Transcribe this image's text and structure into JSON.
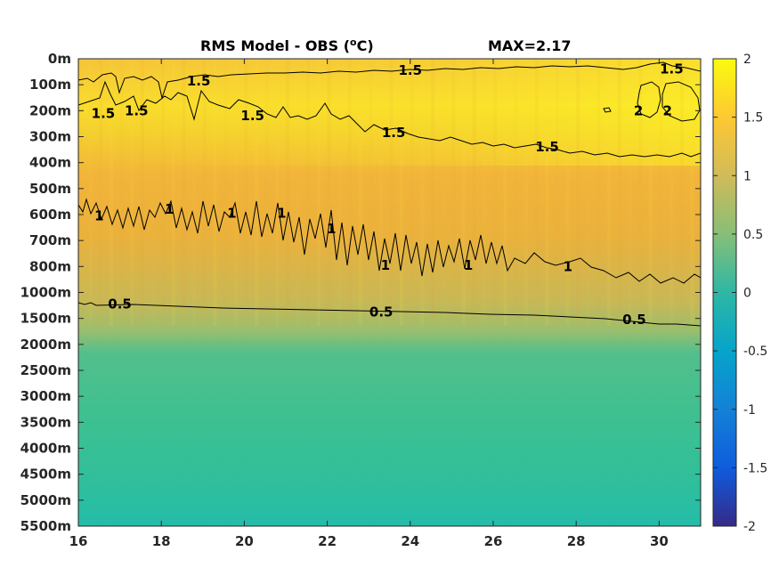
{
  "chart_data": {
    "type": "heatmap",
    "title": "RMS Model - OBS (",
    "title_unit_sup": "o",
    "title_unit_tail": "C)",
    "title_max": "MAX=2.17",
    "x": {
      "ticks": [
        16,
        18,
        20,
        22,
        24,
        26,
        28,
        30
      ],
      "range": [
        16,
        31
      ]
    },
    "y": {
      "ticks": [
        "0m",
        "100m",
        "200m",
        "300m",
        "400m",
        "500m",
        "600m",
        "700m",
        "800m",
        "1000m",
        "1500m",
        "2000m",
        "2500m",
        "3000m",
        "3500m",
        "4000m",
        "4500m",
        "5000m",
        "5500m"
      ],
      "reversed": true
    },
    "colorbar": {
      "range": [
        -2,
        2
      ],
      "ticks": [
        2,
        1.5,
        1,
        0.5,
        0,
        -0.5,
        -1,
        -1.5,
        -2
      ],
      "colormap": "parula",
      "colors": [
        "#352a87",
        "#0f5cdd",
        "#1481d6",
        "#06a4ca",
        "#2eb7a4",
        "#87bf77",
        "#d1bb59",
        "#fec832",
        "#f9fb0e"
      ]
    },
    "rms_profile": {
      "depth_level": [
        0,
        1,
        2,
        3,
        4,
        5,
        6,
        7,
        8,
        9,
        10,
        11,
        12,
        13,
        14,
        15,
        16,
        17,
        18
      ],
      "value_at_x16": [
        1.3,
        1.45,
        1.5,
        1.4,
        1.3,
        1.2,
        1.05,
        0.95,
        0.85,
        0.65,
        0.45,
        0.42,
        0.4,
        0.38,
        0.36,
        0.34,
        0.32,
        0.3,
        0.28
      ],
      "value_at_x31": [
        1.55,
        1.85,
        1.9,
        1.55,
        1.35,
        1.25,
        1.15,
        1.05,
        0.95,
        0.75,
        0.5,
        0.42,
        0.4,
        0.38,
        0.36,
        0.34,
        0.32,
        0.3,
        0.28
      ]
    },
    "contours": [
      {
        "level": "2",
        "labels": [
          {
            "x": 29.5,
            "y": 2.0
          },
          {
            "x": 30.2,
            "y": 2.0
          }
        ]
      },
      {
        "level": "1.5",
        "labels": [
          {
            "x": 16.6,
            "y": 2.1
          },
          {
            "x": 17.4,
            "y": 2.0
          },
          {
            "x": 18.9,
            "y": 0.85
          },
          {
            "x": 20.2,
            "y": 2.2
          },
          {
            "x": 24.0,
            "y": 0.45
          },
          {
            "x": 23.6,
            "y": 2.85
          },
          {
            "x": 27.3,
            "y": 3.4
          },
          {
            "x": 30.3,
            "y": 0.4
          }
        ]
      },
      {
        "level": "1",
        "labels": [
          {
            "x": 16.5,
            "y": 6.05
          },
          {
            "x": 18.2,
            "y": 5.8
          },
          {
            "x": 19.7,
            "y": 5.95
          },
          {
            "x": 20.9,
            "y": 5.95
          },
          {
            "x": 22.1,
            "y": 6.55
          },
          {
            "x": 23.4,
            "y": 7.95
          },
          {
            "x": 25.4,
            "y": 7.95
          },
          {
            "x": 27.8,
            "y": 8.0
          }
        ]
      },
      {
        "level": "0.5",
        "labels": [
          {
            "x": 17.0,
            "y": 9.45
          },
          {
            "x": 23.3,
            "y": 9.75
          },
          {
            "x": 29.4,
            "y": 10.05
          }
        ]
      }
    ]
  }
}
